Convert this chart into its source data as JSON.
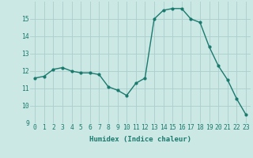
{
  "x": [
    0,
    1,
    2,
    3,
    4,
    5,
    6,
    7,
    8,
    9,
    10,
    11,
    12,
    13,
    14,
    15,
    16,
    17,
    18,
    19,
    20,
    21,
    22,
    23
  ],
  "y": [
    11.6,
    11.7,
    12.1,
    12.2,
    12.0,
    11.9,
    11.9,
    11.8,
    11.1,
    10.9,
    10.6,
    11.3,
    11.6,
    15.0,
    15.5,
    15.6,
    15.6,
    15.0,
    14.8,
    13.4,
    12.3,
    11.5,
    10.4,
    9.5
  ],
  "line_color": "#1a7a6e",
  "bg_color": "#cce8e4",
  "grid_color": "#aacece",
  "xlabel": "Humidex (Indice chaleur)",
  "xlim": [
    -0.5,
    23.5
  ],
  "ylim": [
    9,
    16
  ],
  "yticks": [
    9,
    10,
    11,
    12,
    13,
    14,
    15
  ],
  "xticks": [
    0,
    1,
    2,
    3,
    4,
    5,
    6,
    7,
    8,
    9,
    10,
    11,
    12,
    13,
    14,
    15,
    16,
    17,
    18,
    19,
    20,
    21,
    22,
    23
  ],
  "xlabel_color": "#1a7a6e",
  "tick_color": "#1a7a6e",
  "label_fontsize": 6.5,
  "tick_fontsize": 5.8
}
